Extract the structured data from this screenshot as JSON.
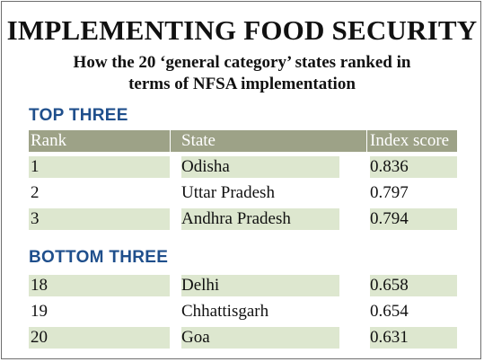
{
  "chart_data": {
    "type": "table",
    "title": "IMPLEMENTING FOOD SECURITY",
    "subtitle_line1": "How the 20 ‘general category’ states ranked in",
    "subtitle_line2": "terms of NFSA implementation",
    "columns": [
      "Rank",
      "State",
      "Index score"
    ],
    "sections": [
      {
        "heading": "TOP THREE",
        "rows": [
          {
            "rank": "1",
            "state": "Odisha",
            "score": "0.836"
          },
          {
            "rank": "2",
            "state": "Uttar Pradesh",
            "score": "0.797"
          },
          {
            "rank": "3",
            "state": "Andhra Pradesh",
            "score": "0.794"
          }
        ]
      },
      {
        "heading": "BOTTOM THREE",
        "rows": [
          {
            "rank": "18",
            "state": "Delhi",
            "score": "0.658"
          },
          {
            "rank": "19",
            "state": "Chhattisgarh",
            "score": "0.654"
          },
          {
            "rank": "20",
            "state": "Goa",
            "score": "0.631"
          }
        ]
      }
    ],
    "colors": {
      "heading_blue": "#1f4f8c",
      "header_bg": "#9da287",
      "row_shade": "#dde7cf"
    }
  }
}
